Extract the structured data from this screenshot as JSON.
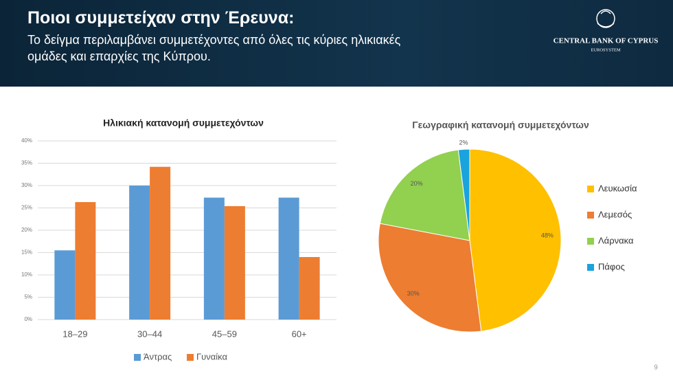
{
  "header": {
    "title": "Ποιοι συμμετείχαν στην Έρευνα:",
    "subtitle": "Το δείγμα περιλαμβάνει συμμετέχοντες από όλες τις κύριες ηλικιακές ομάδες και επαρχίες της Κύπρου."
  },
  "logo": {
    "name": "CENTRAL BANK OF CYPRUS",
    "tagline": "EUROSYSTEM"
  },
  "page_number": "9",
  "chart_data": [
    {
      "type": "bar",
      "title": "Ηλικιακή κατανομή συμμετεχόντων",
      "categories": [
        "18–29",
        "30–44",
        "45–59",
        "60+"
      ],
      "series": [
        {
          "name": "Άντρας",
          "color": "#5b9bd5",
          "values": [
            15.5,
            30,
            27.3,
            27.3
          ]
        },
        {
          "name": "Γυναίκα",
          "color": "#ed7d31",
          "values": [
            26.3,
            34.2,
            25.4,
            14
          ]
        }
      ],
      "ylim": [
        0,
        40
      ],
      "yticks": [
        {
          "value": 0,
          "label": "0%"
        },
        {
          "value": 5,
          "label": "5%"
        },
        {
          "value": 10,
          "label": "10%"
        },
        {
          "value": 15,
          "label": "15%"
        },
        {
          "value": 20,
          "label": "20%"
        },
        {
          "value": 25,
          "label": "25%"
        },
        {
          "value": 30,
          "label": "30%"
        },
        {
          "value": 35,
          "label": "35%"
        },
        {
          "value": 40,
          "label": "40%"
        }
      ],
      "grid": true,
      "legend": "bottom"
    },
    {
      "type": "pie",
      "title": "Γεωγραφική κατανομή συμμετεχόντων",
      "categories": [
        "Λευκωσία",
        "Λεμεσός",
        "Λάρνακα",
        "Πάφος"
      ],
      "values": [
        48,
        30,
        20,
        2
      ],
      "value_labels": [
        "48%",
        "30%",
        "20%",
        "2%"
      ],
      "colors": [
        "#ffc000",
        "#ed7d31",
        "#92d050",
        "#1aa3dd"
      ],
      "legend": "right"
    }
  ]
}
